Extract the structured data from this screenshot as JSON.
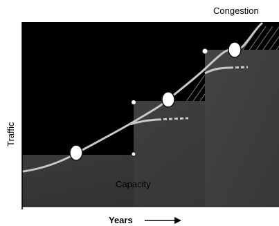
{
  "chart_data": {
    "type": "diagram",
    "title": "",
    "xlabel": "Years",
    "ylabel": "Traffic",
    "annotations": {
      "congestion": "Congestion",
      "capacity": "Capacity"
    },
    "axis_arrow": "x-axis arrow pointing right",
    "steps": [
      {
        "name": "capacity-step-1",
        "level": 0.3
      },
      {
        "name": "capacity-step-2",
        "level": 0.58
      },
      {
        "name": "capacity-step-3",
        "level": 0.86
      }
    ],
    "colors": {
      "sky": "#000000",
      "capacity": "#383838",
      "curve": "#bdbdbd",
      "marker": "#ffffff",
      "hatch": "#6f6f6f"
    }
  }
}
